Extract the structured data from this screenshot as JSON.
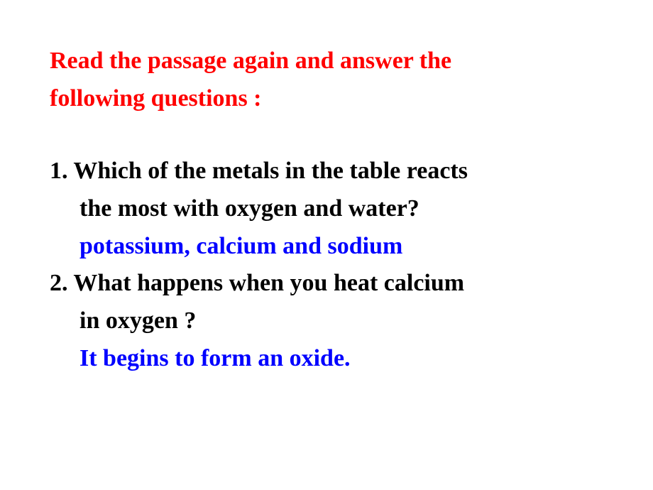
{
  "instruction": {
    "line1": "Read the passage again and answer the",
    "line2": "following questions :"
  },
  "questions": [
    {
      "number": "1.",
      "line1": "Which of the metals in the table reacts",
      "line2": "the most with oxygen and water?",
      "answer": "potassium, calcium and sodium"
    },
    {
      "number": "2.",
      "line1": "What happens when you heat calcium",
      "line2": "in oxygen ?",
      "answer": "It begins to form an oxide."
    }
  ],
  "colors": {
    "instruction": "#ff0000",
    "question": "#000000",
    "answer": "#0000ff",
    "background": "#ffffff"
  },
  "typography": {
    "font_family": "Times New Roman",
    "font_weight": "bold",
    "font_size_pt": 26
  }
}
